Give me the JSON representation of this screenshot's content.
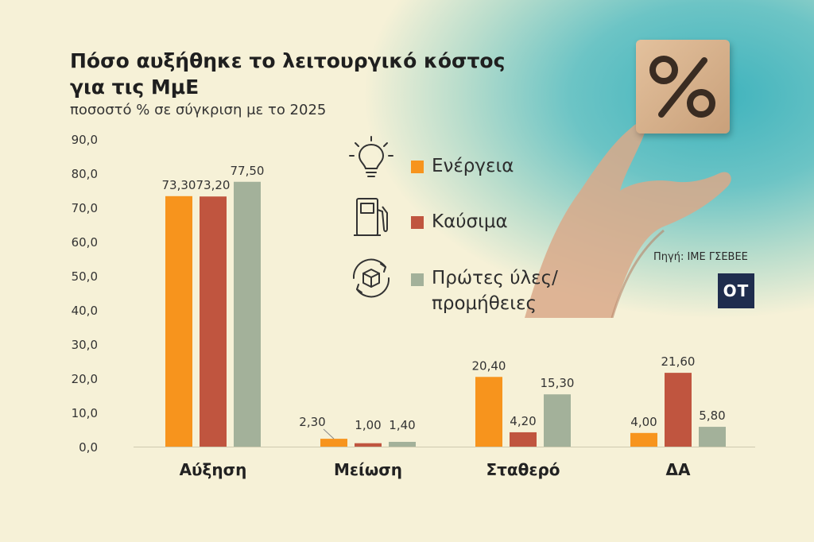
{
  "title": "Πόσο αυξήθηκε το λειτουργικό κόστος για τις ΜμΕ",
  "subtitle": "ποσοστό % σε σύγκριση με το 2025",
  "source": "Πηγή: ΙΜΕ ΓΣΕΒΕΕ",
  "logo_text": "OT",
  "colors": {
    "energy": "#f7941d",
    "fuel": "#c0553f",
    "materials": "#a3b19a"
  },
  "legend": [
    {
      "label": "Ενέργεια",
      "icon": "lightbulb-icon",
      "color": "#f7941d"
    },
    {
      "label": "Καύσιμα",
      "icon": "fuel-pump-icon",
      "color": "#c0553f"
    },
    {
      "label": "Πρώτες ύλες/\nπρομήθειες",
      "icon": "box-cycle-icon",
      "color": "#a3b19a"
    }
  ],
  "chart_data": {
    "type": "bar",
    "categories": [
      "Αύξηση",
      "Μείωση",
      "Σταθερό",
      "ΔΑ"
    ],
    "series": [
      {
        "name": "Ενέργεια",
        "values": [
          73.3,
          2.3,
          20.4,
          4.0
        ],
        "labels": [
          "73,30",
          "2,30",
          "20,40",
          "4,00"
        ]
      },
      {
        "name": "Καύσιμα",
        "values": [
          73.2,
          1.0,
          4.2,
          21.6
        ],
        "labels": [
          "73,20",
          "1,00",
          "4,20",
          "21,60"
        ]
      },
      {
        "name": "Πρώτες ύλες/ προμήθειες",
        "values": [
          77.5,
          1.4,
          15.3,
          5.8
        ],
        "labels": [
          "77,50",
          "1,40",
          "15,30",
          "5,80"
        ]
      }
    ],
    "yticks": [
      "0,0",
      "10,0",
      "20,0",
      "30,0",
      "40,0",
      "50,0",
      "60,0",
      "70,0",
      "80,0",
      "90,0"
    ],
    "ylim": [
      0,
      90
    ],
    "grid": false,
    "legend_position": "top-center"
  }
}
